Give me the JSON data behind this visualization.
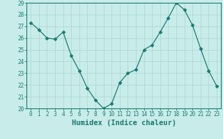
{
  "x": [
    0,
    1,
    2,
    3,
    4,
    5,
    6,
    7,
    8,
    9,
    10,
    11,
    12,
    13,
    14,
    15,
    16,
    17,
    18,
    19,
    20,
    21,
    22,
    23
  ],
  "y": [
    27.3,
    26.7,
    26.0,
    25.9,
    26.5,
    24.5,
    23.2,
    21.7,
    20.7,
    20.0,
    20.4,
    22.2,
    23.0,
    23.3,
    25.0,
    25.4,
    26.5,
    27.7,
    29.0,
    28.4,
    27.1,
    25.1,
    23.2,
    21.9
  ],
  "line_color": "#1a7a6e",
  "marker": "D",
  "marker_size": 2.5,
  "bg_color": "#c8ecea",
  "grid_color": "#b0d8d4",
  "axis_color": "#1a7a6e",
  "xlabel": "Humidex (Indice chaleur)",
  "ylim": [
    20,
    29
  ],
  "xlim_min": -0.5,
  "xlim_max": 23.5,
  "yticks": [
    20,
    21,
    22,
    23,
    24,
    25,
    26,
    27,
    28,
    29
  ],
  "xticks": [
    0,
    1,
    2,
    3,
    4,
    5,
    6,
    7,
    8,
    9,
    10,
    11,
    12,
    13,
    14,
    15,
    16,
    17,
    18,
    19,
    20,
    21,
    22,
    23
  ],
  "tick_fontsize": 5.5,
  "label_fontsize": 7.5
}
